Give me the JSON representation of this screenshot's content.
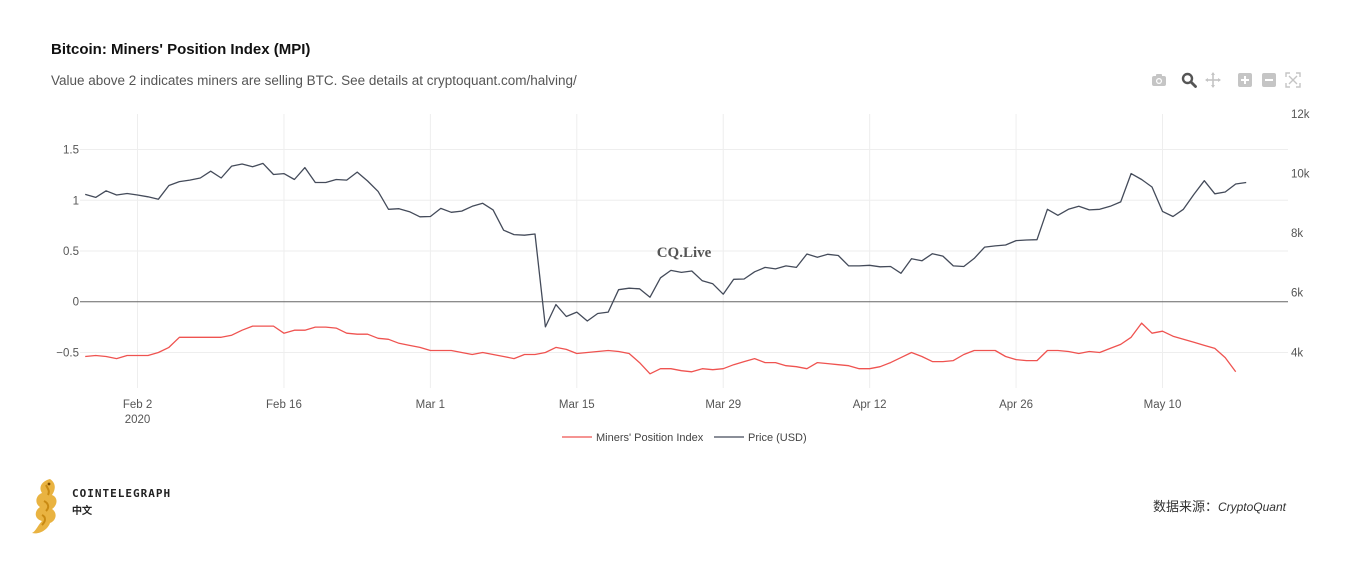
{
  "header": {
    "title": "Bitcoin: Miners' Position Index (MPI)",
    "subtitle": "Value above 2 indicates miners are selling BTC. See details at cryptoquant.com/halving/"
  },
  "toolbar": {
    "icons": [
      "camera-icon",
      "zoom-icon",
      "pan-icon",
      "zoom-in-icon",
      "zoom-out-icon",
      "autoscale-icon"
    ]
  },
  "watermark": "CQ.Live",
  "footer": {
    "brand_name": "COINTELEGRAPH",
    "brand_sub": "中文",
    "source_label": "数据来源：",
    "source_name": "CryptoQuant"
  },
  "chart_data": {
    "type": "line",
    "x_axis": {
      "ticks": [
        {
          "day": 0,
          "label": "Feb 2",
          "sublabel": "2020"
        },
        {
          "day": 14,
          "label": "Feb 16",
          "sublabel": ""
        },
        {
          "day": 28,
          "label": "Mar 1",
          "sublabel": ""
        },
        {
          "day": 42,
          "label": "Mar 15",
          "sublabel": ""
        },
        {
          "day": 56,
          "label": "Mar 29",
          "sublabel": ""
        },
        {
          "day": 70,
          "label": "Apr 12",
          "sublabel": ""
        },
        {
          "day": 84,
          "label": "Apr 26",
          "sublabel": ""
        },
        {
          "day": 98,
          "label": "May 10",
          "sublabel": ""
        }
      ],
      "range": [
        -5.5,
        110
      ]
    },
    "y_left": {
      "range": [
        -0.85,
        1.85
      ],
      "ticks": [
        1.5,
        1,
        0.5,
        0,
        -0.5
      ],
      "tick_labels": [
        "1.5",
        "1",
        "0.5",
        "0",
        "−0.5"
      ]
    },
    "y_right": {
      "range": [
        2800,
        12000
      ],
      "ticks": [
        12000,
        10000,
        8000,
        6000,
        4000
      ],
      "tick_labels": [
        "12k",
        "10k",
        "8k",
        "6k",
        "4k"
      ]
    },
    "grid": true,
    "legend_position": "bottom-center",
    "series": [
      {
        "name": "Miners' Position Index",
        "axis": "left",
        "color": "#ef5350",
        "x_start": -5,
        "values": [
          -0.54,
          -0.53,
          -0.54,
          -0.56,
          -0.53,
          -0.53,
          -0.53,
          -0.5,
          -0.45,
          -0.35,
          -0.35,
          -0.35,
          -0.35,
          -0.35,
          -0.33,
          -0.28,
          -0.24,
          -0.24,
          -0.24,
          -0.31,
          -0.28,
          -0.28,
          -0.25,
          -0.25,
          -0.26,
          -0.31,
          -0.32,
          -0.32,
          -0.36,
          -0.37,
          -0.41,
          -0.43,
          -0.45,
          -0.48,
          -0.48,
          -0.48,
          -0.5,
          -0.52,
          -0.5,
          -0.52,
          -0.54,
          -0.56,
          -0.52,
          -0.52,
          -0.5,
          -0.45,
          -0.47,
          -0.51,
          -0.5,
          -0.49,
          -0.48,
          -0.49,
          -0.51,
          -0.6,
          -0.71,
          -0.66,
          -0.66,
          -0.68,
          -0.69,
          -0.66,
          -0.67,
          -0.66,
          -0.62,
          -0.59,
          -0.56,
          -0.6,
          -0.6,
          -0.63,
          -0.64,
          -0.66,
          -0.6,
          -0.61,
          -0.62,
          -0.63,
          -0.66,
          -0.66,
          -0.64,
          -0.6,
          -0.55,
          -0.5,
          -0.54,
          -0.59,
          -0.59,
          -0.58,
          -0.52,
          -0.48,
          -0.48,
          -0.48,
          -0.54,
          -0.57,
          -0.58,
          -0.58,
          -0.48,
          -0.48,
          -0.49,
          -0.51,
          -0.49,
          -0.5,
          -0.46,
          -0.42,
          -0.35,
          -0.21,
          -0.31,
          -0.29,
          -0.34,
          -0.37,
          -0.4,
          -0.43,
          -0.46,
          -0.55,
          -0.69
        ]
      },
      {
        "name": "Price (USD)",
        "axis": "right",
        "color": "#444b5a",
        "x_start": -5,
        "values": [
          9300,
          9200,
          9420,
          9280,
          9330,
          9280,
          9220,
          9140,
          9600,
          9730,
          9780,
          9850,
          10080,
          9850,
          10250,
          10320,
          10230,
          10340,
          9970,
          10000,
          9800,
          10200,
          9700,
          9700,
          9800,
          9780,
          10050,
          9750,
          9400,
          8800,
          8820,
          8720,
          8550,
          8560,
          8830,
          8700,
          8740,
          8900,
          9000,
          8780,
          8100,
          7950,
          7930,
          7970,
          4850,
          5600,
          5200,
          5350,
          5050,
          5300,
          5350,
          6100,
          6150,
          6130,
          5850,
          6500,
          6750,
          6680,
          6730,
          6400,
          6300,
          5950,
          6450,
          6460,
          6700,
          6850,
          6800,
          6900,
          6850,
          7300,
          7190,
          7290,
          7250,
          6900,
          6900,
          6920,
          6870,
          6880,
          6650,
          7140,
          7070,
          7310,
          7230,
          6900,
          6880,
          7150,
          7530,
          7570,
          7600,
          7750,
          7770,
          7780,
          8800,
          8600,
          8800,
          8900,
          8780,
          8800,
          8900,
          9050,
          10000,
          9800,
          9550,
          8730,
          8560,
          8800,
          9300,
          9760,
          9320,
          9380,
          9650,
          9700
        ]
      }
    ]
  }
}
